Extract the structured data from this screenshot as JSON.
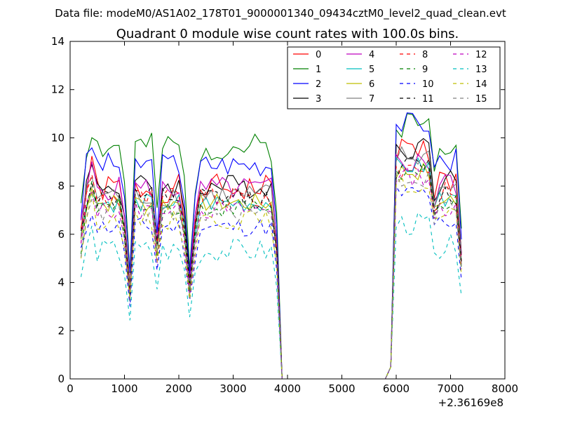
{
  "figure": {
    "suptitle": "Data file: modeM0/AS1A02_178T01_9000001340_09434cztM0_level2_quad_clean.evt",
    "title": "Quadrant 0 module wise count rates with 100.0s bins.",
    "x_offset_label": "+2.36169e8"
  },
  "chart_data": {
    "type": "line",
    "title": "Quadrant 0 module wise count rates with 100.0s bins.",
    "xlabel": "",
    "ylabel": "",
    "xlim": [
      0,
      8000
    ],
    "ylim": [
      0,
      14
    ],
    "x_ticks": [
      0,
      1000,
      2000,
      3000,
      4000,
      5000,
      6000,
      7000,
      8000
    ],
    "y_ticks": [
      0,
      2,
      4,
      6,
      8,
      10,
      12,
      14
    ],
    "x_offset": "+2.36169e8",
    "grid": false,
    "legend_position": "top-right",
    "legend_columns": 4,
    "series": [
      {
        "name": "0",
        "color": "#ff0000",
        "dash": "solid",
        "base": 7.9,
        "peak": 9.5,
        "amp": 0.6,
        "seed": 1
      },
      {
        "name": "1",
        "color": "#008000",
        "dash": "solid",
        "base": 9.6,
        "peak": 10.6,
        "amp": 0.6,
        "seed": 2
      },
      {
        "name": "2",
        "color": "#0000ff",
        "dash": "solid",
        "base": 8.9,
        "peak": 10.6,
        "amp": 0.5,
        "seed": 3
      },
      {
        "name": "3",
        "color": "#000000",
        "dash": "solid",
        "base": 8.0,
        "peak": 9.6,
        "amp": 0.5,
        "seed": 4
      },
      {
        "name": "4",
        "color": "#bf00bf",
        "dash": "solid",
        "base": 7.9,
        "peak": 9.0,
        "amp": 0.5,
        "seed": 5
      },
      {
        "name": "5",
        "color": "#00bfbf",
        "dash": "solid",
        "base": 7.3,
        "peak": 8.8,
        "amp": 0.4,
        "seed": 6
      },
      {
        "name": "6",
        "color": "#bfbf00",
        "dash": "solid",
        "base": 7.3,
        "peak": 8.6,
        "amp": 0.4,
        "seed": 7
      },
      {
        "name": "7",
        "color": "#808080",
        "dash": "solid",
        "base": 7.6,
        "peak": 9.2,
        "amp": 0.5,
        "seed": 8
      },
      {
        "name": "8",
        "color": "#ff0000",
        "dash": "dashed",
        "base": 7.5,
        "peak": 8.8,
        "amp": 0.5,
        "seed": 9
      },
      {
        "name": "9",
        "color": "#008000",
        "dash": "dashed",
        "base": 7.1,
        "peak": 8.5,
        "amp": 0.4,
        "seed": 10
      },
      {
        "name": "10",
        "color": "#0000ff",
        "dash": "dashed",
        "base": 6.3,
        "peak": 7.7,
        "amp": 0.4,
        "seed": 11
      },
      {
        "name": "11",
        "color": "#000000",
        "dash": "dashed",
        "base": 7.5,
        "peak": 8.8,
        "amp": 0.5,
        "seed": 12
      },
      {
        "name": "12",
        "color": "#bf00bf",
        "dash": "dashed",
        "base": 7.0,
        "peak": 8.4,
        "amp": 0.4,
        "seed": 13
      },
      {
        "name": "13",
        "color": "#00bfbf",
        "dash": "dashed",
        "base": 5.3,
        "peak": 6.4,
        "amp": 0.5,
        "seed": 14
      },
      {
        "name": "14",
        "color": "#bfbf00",
        "dash": "dashed",
        "base": 6.6,
        "peak": 8.0,
        "amp": 0.4,
        "seed": 15
      },
      {
        "name": "15",
        "color": "#808080",
        "dash": "dashed",
        "base": 6.9,
        "peak": 8.3,
        "amp": 0.4,
        "seed": 16
      }
    ]
  }
}
